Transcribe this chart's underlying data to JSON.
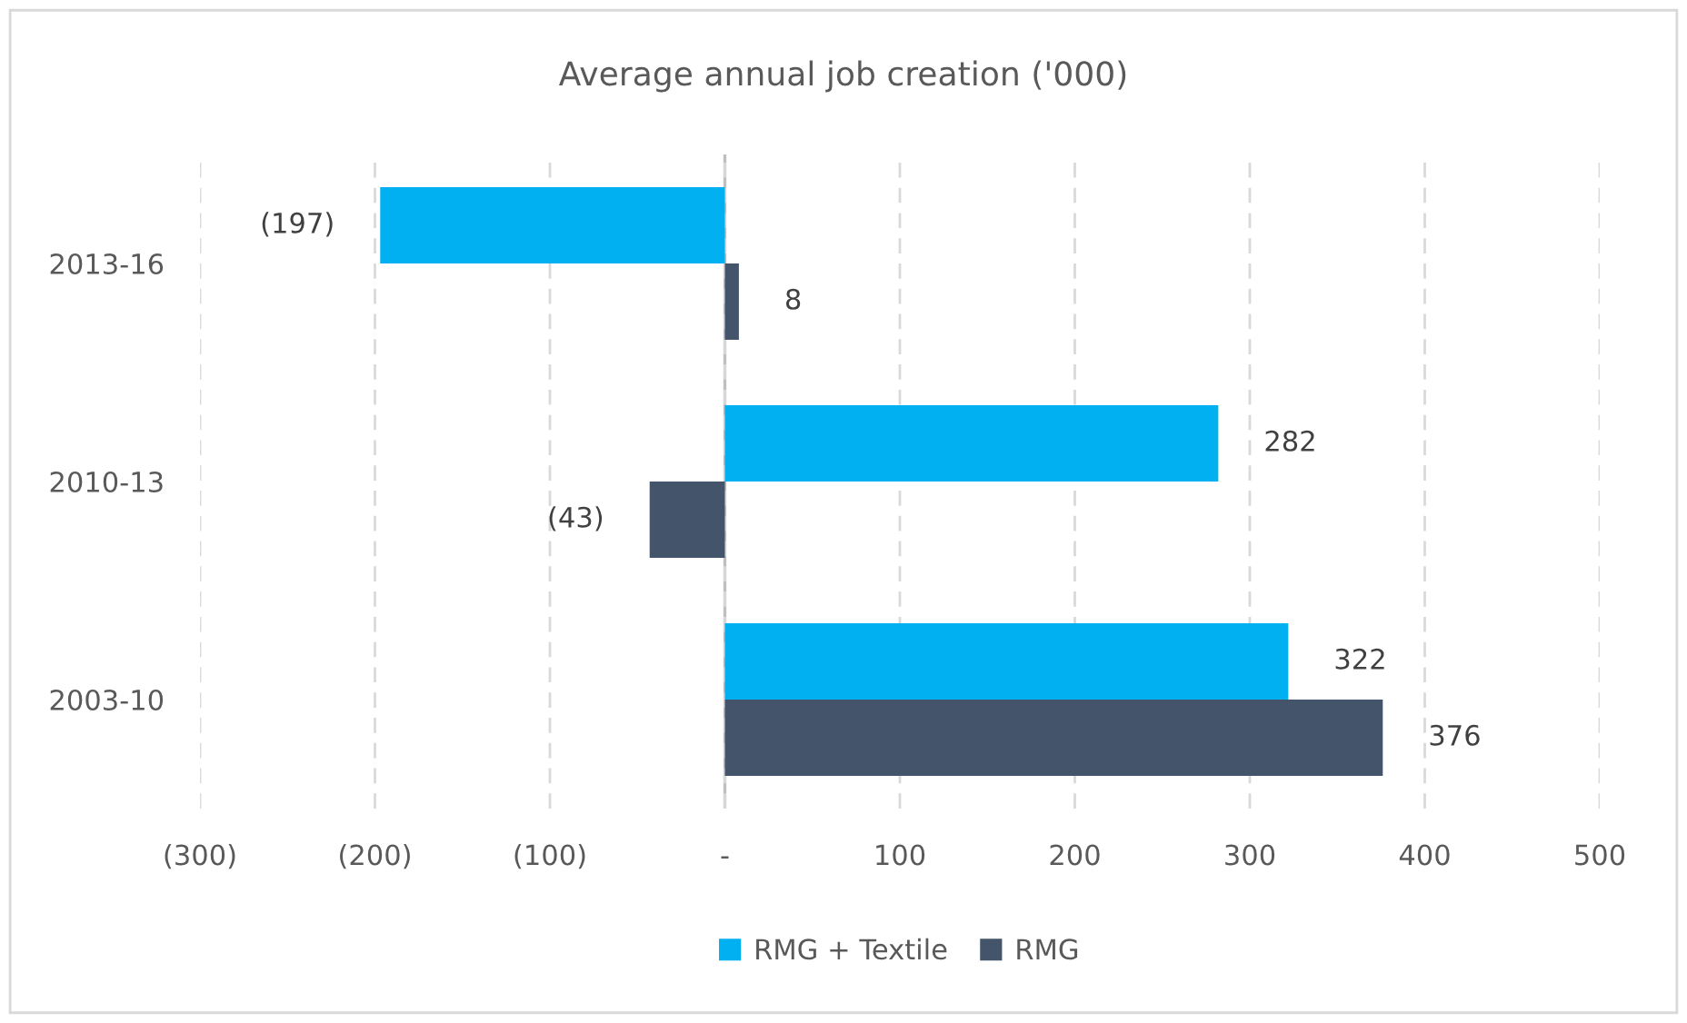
{
  "chart_data": {
    "type": "bar",
    "orientation": "horizontal",
    "title": "Average annual job creation ('000)",
    "categories": [
      "2013-16",
      "2010-13",
      "2003-10"
    ],
    "series": [
      {
        "name": "RMG + Textile",
        "color": "#00b0f0",
        "values": [
          -197,
          282,
          322
        ],
        "value_labels": [
          "(197)",
          "282",
          "322"
        ]
      },
      {
        "name": "RMG",
        "color": "#44546a",
        "values": [
          8,
          -43,
          376
        ],
        "value_labels": [
          "8",
          "(43)",
          "376"
        ]
      }
    ],
    "xlim": [
      -300,
      500
    ],
    "xticks": [
      {
        "value": -300,
        "label": "(300)"
      },
      {
        "value": -200,
        "label": "(200)"
      },
      {
        "value": -100,
        "label": "(100)"
      },
      {
        "value": 0,
        "label": "-"
      },
      100,
      200,
      300,
      400,
      500
    ],
    "grid": "x",
    "legend": "bottom"
  }
}
